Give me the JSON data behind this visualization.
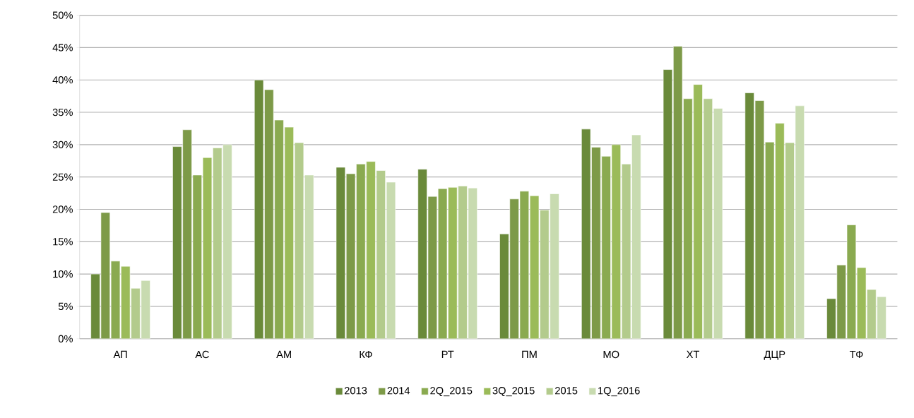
{
  "chart_data": {
    "type": "bar",
    "categories": [
      "АП",
      "АС",
      "АМ",
      "КФ",
      "РТ",
      "ПМ",
      "МО",
      "ХТ",
      "ДЦР",
      "ТФ"
    ],
    "series": [
      {
        "name": "2013",
        "color": "#6a8a3a",
        "values": [
          10,
          29.7,
          40,
          26.5,
          26.2,
          16.2,
          32.4,
          41.6,
          38,
          6.2
        ]
      },
      {
        "name": "2014",
        "color": "#7d9a48",
        "values": [
          19.5,
          32.3,
          38.5,
          25.5,
          22,
          21.6,
          29.6,
          45.2,
          36.8,
          11.4
        ]
      },
      {
        "name": "2Q_2015",
        "color": "#8aaa50",
        "values": [
          12,
          25.3,
          33.8,
          27,
          23.2,
          22.8,
          28.2,
          37.1,
          30.4,
          17.6
        ]
      },
      {
        "name": "3Q_2015",
        "color": "#9bbb59",
        "values": [
          11.2,
          28,
          32.7,
          27.4,
          23.4,
          22.1,
          30,
          39.3,
          33.3,
          11
        ]
      },
      {
        "name": "2015",
        "color": "#b3cb8c",
        "values": [
          7.8,
          29.5,
          30.3,
          26,
          23.6,
          19.9,
          27,
          37.1,
          30.3,
          7.6
        ]
      },
      {
        "name": "1Q_2016",
        "color": "#c8dbb0",
        "values": [
          9,
          30,
          25.3,
          24.2,
          23.3,
          22.4,
          31.5,
          35.6,
          36,
          6.5
        ]
      }
    ],
    "ylim": [
      0,
      50
    ],
    "yticks": [
      {
        "value": 0,
        "label": "0%"
      },
      {
        "value": 5,
        "label": "5%"
      },
      {
        "value": 10,
        "label": "10%"
      },
      {
        "value": 15,
        "label": "15%"
      },
      {
        "value": 20,
        "label": "20%"
      },
      {
        "value": 25,
        "label": "25%"
      },
      {
        "value": 30,
        "label": "30%"
      },
      {
        "value": 35,
        "label": "35%"
      },
      {
        "value": 40,
        "label": "40%"
      },
      {
        "value": 45,
        "label": "45%"
      },
      {
        "value": 50,
        "label": "50%"
      }
    ],
    "grid": "y",
    "legend": "bottom"
  }
}
